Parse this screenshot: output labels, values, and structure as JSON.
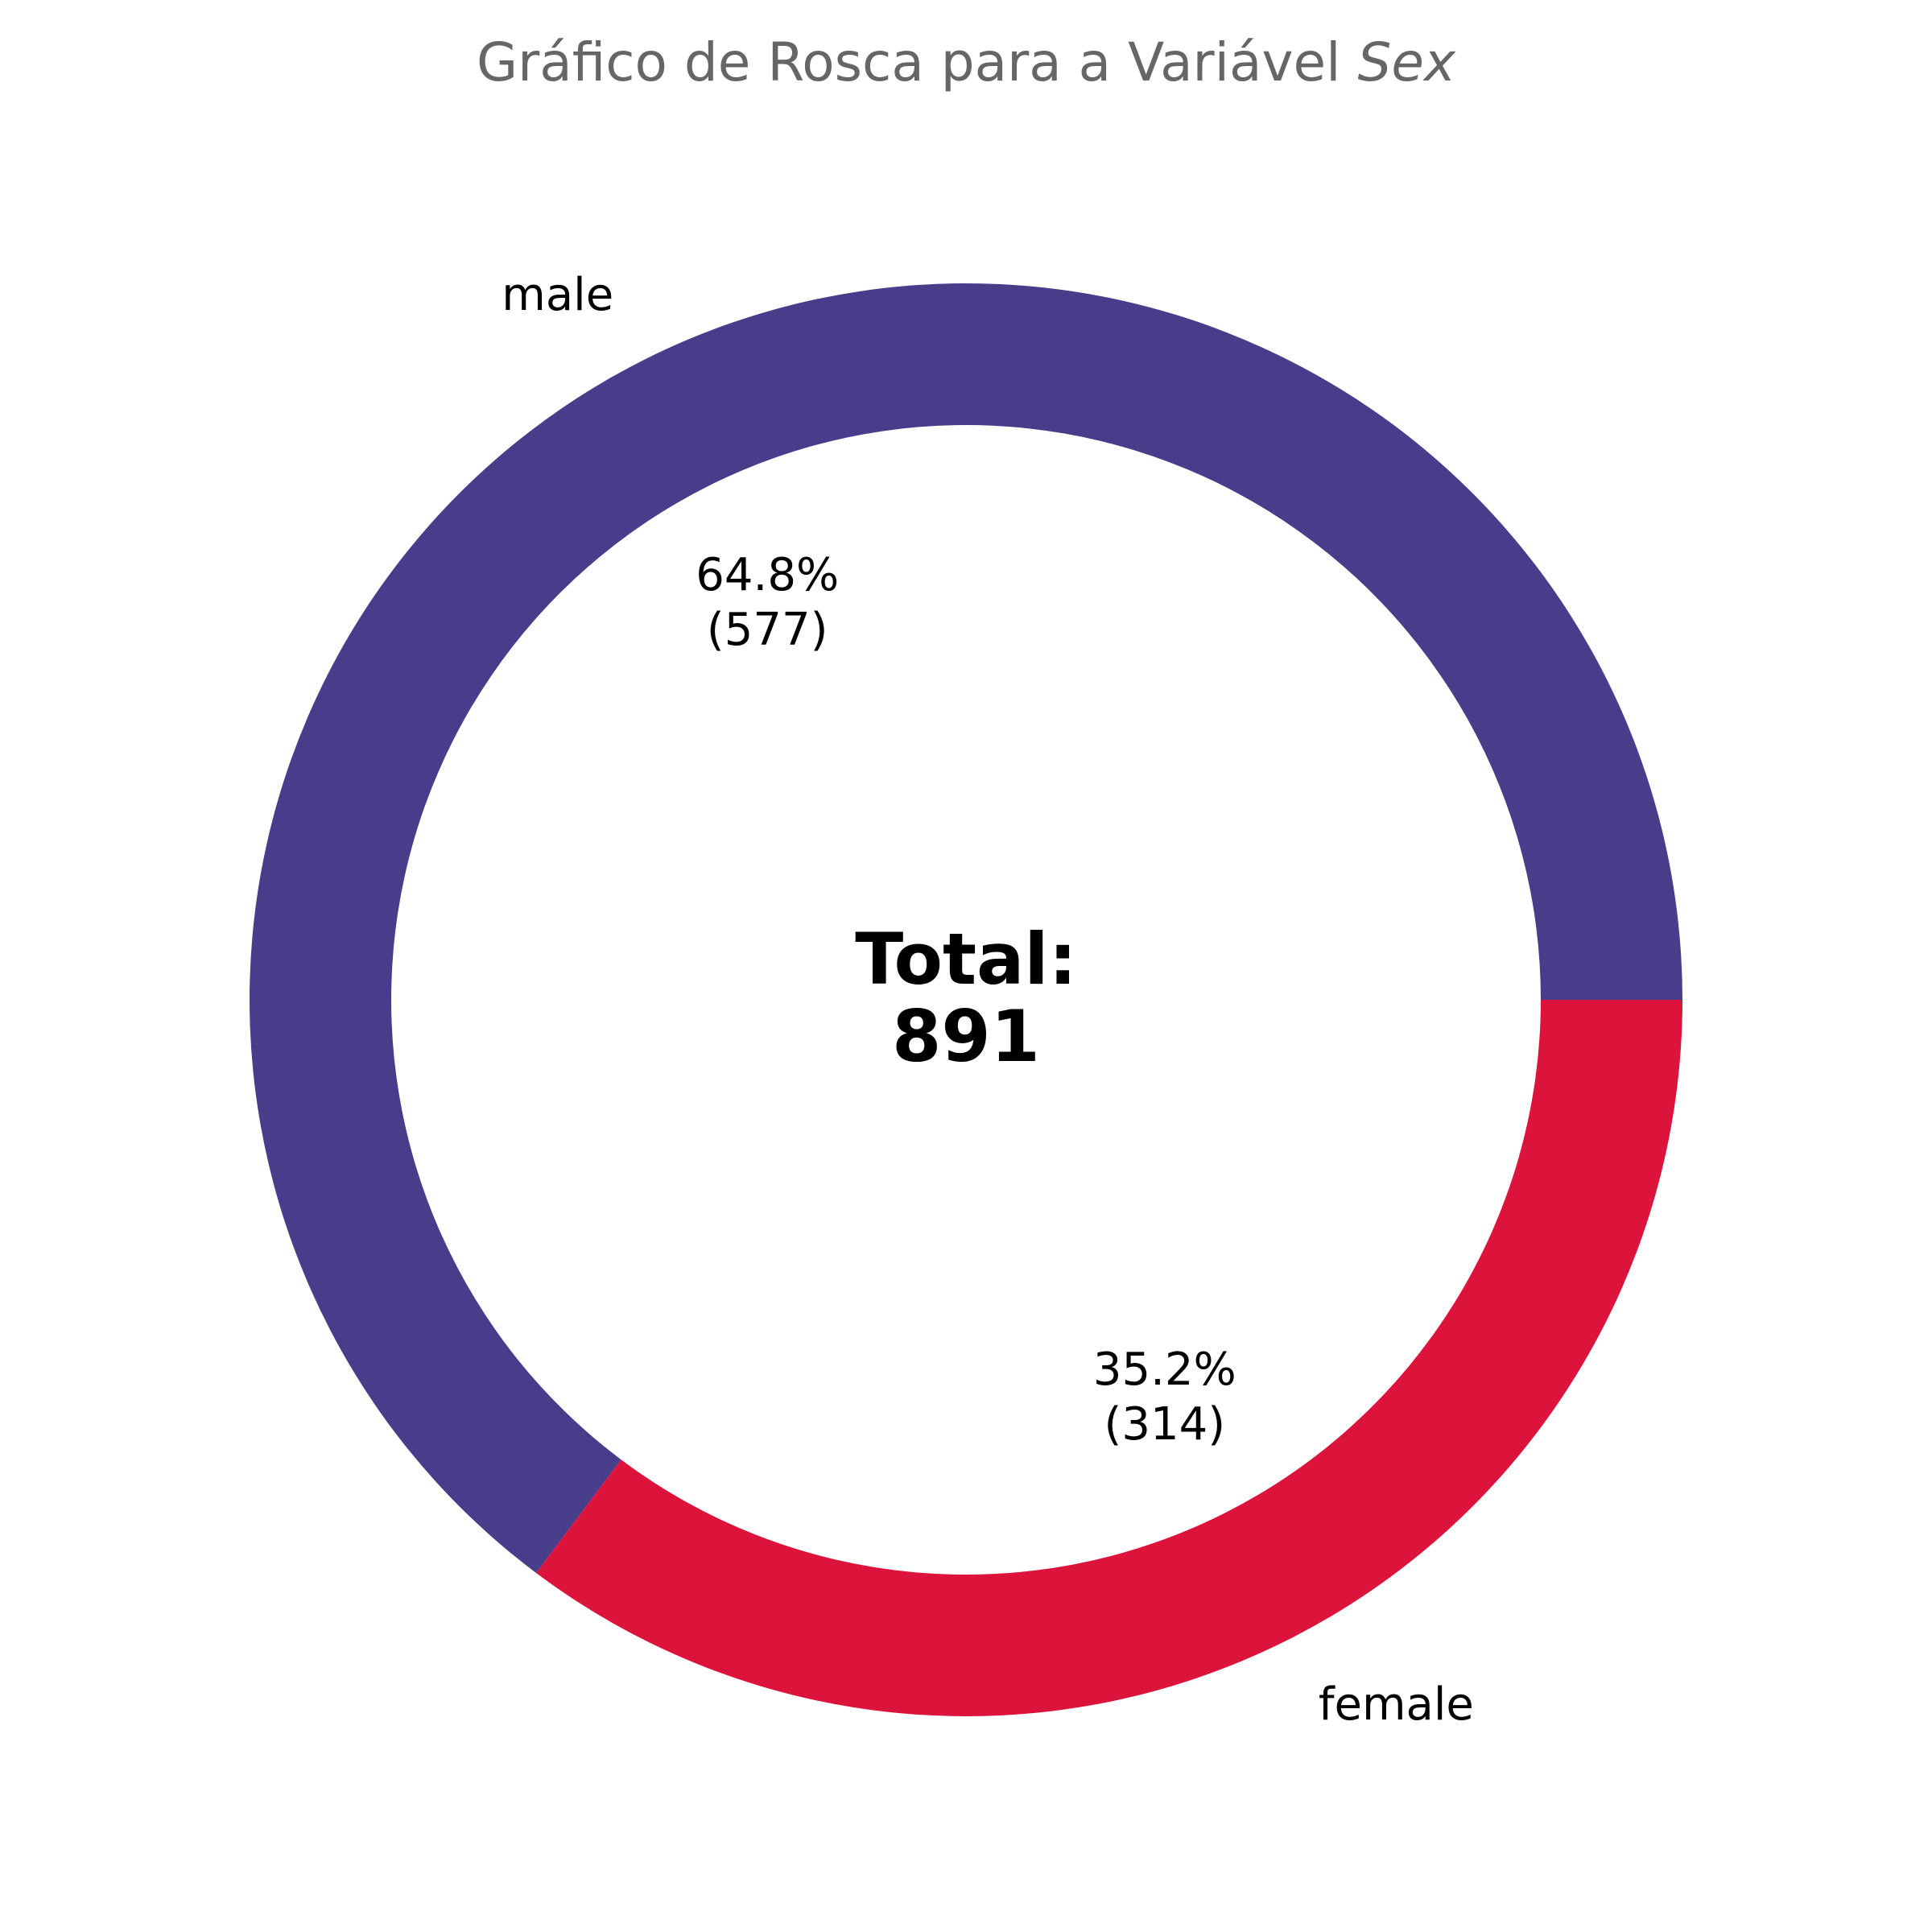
{
  "title": {
    "main": "Gráfico de Rosca para a Variável ",
    "variable": "Sex"
  },
  "center": {
    "label": "Total:",
    "value": "891"
  },
  "chart_data": {
    "type": "pie",
    "variant": "donut",
    "title": "Gráfico de Rosca para a Variável Sex",
    "categories": [
      "male",
      "female"
    ],
    "values": [
      577,
      314
    ],
    "percent_labels": [
      "64.8%",
      "35.2%"
    ],
    "count_labels": [
      "(577)",
      "(314)"
    ],
    "colors": [
      "#483D8B",
      "#DC143C"
    ],
    "total": 891,
    "start_angle_deg": 0,
    "direction": "counterclockwise"
  }
}
